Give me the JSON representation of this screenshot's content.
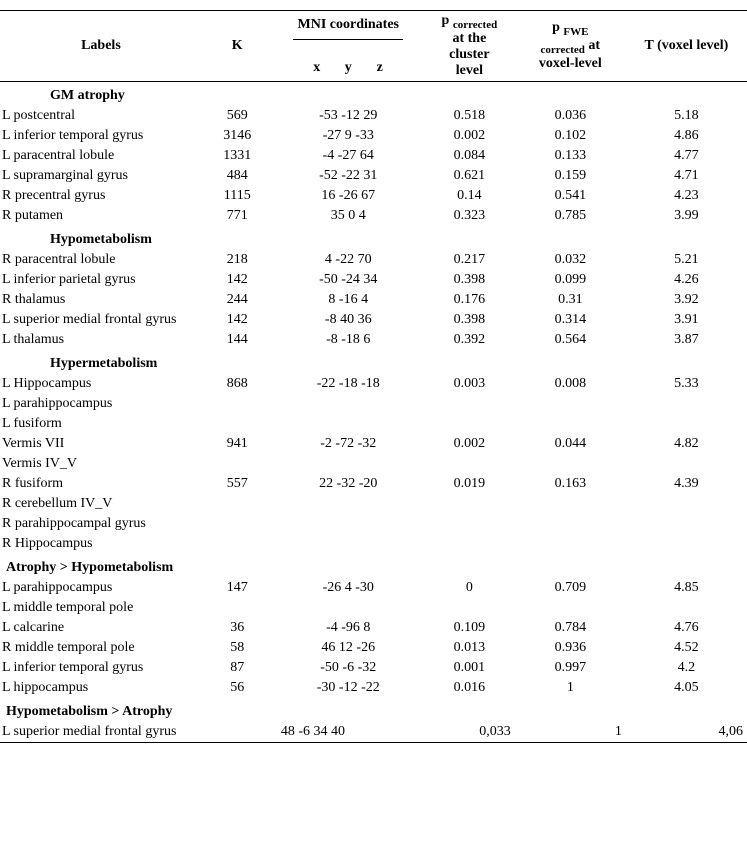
{
  "columns": {
    "labels": "Labels",
    "k": "K",
    "mni": "MNI coordinates",
    "p_cluster_html": "p <span class='sub'>corrected</span><br>at the<br>cluster<br>level",
    "p_fwe_html": "p <span class='sub'>FWE</span><br><span class='sub'>corrected</span> at<br>voxel-level",
    "t": "T (voxel level)",
    "x": "x",
    "y": "y",
    "z": "z"
  },
  "sections": [
    {
      "title": "GM atrophy",
      "indent": true,
      "rows": [
        {
          "label": "L postcentral",
          "k": "569",
          "mni": "-53 -12 29",
          "pcl": "0.518",
          "pfwe": "0.036",
          "t": "5.18"
        },
        {
          "label": "L inferior temporal gyrus",
          "k": "3146",
          "mni": "-27 9 -33",
          "pcl": "0.002",
          "pfwe": "0.102",
          "t": "4.86"
        },
        {
          "label": "L paracentral lobule",
          "k": "1331",
          "mni": "-4 -27 64",
          "pcl": "0.084",
          "pfwe": "0.133",
          "t": "4.77"
        },
        {
          "label": "L supramarginal gyrus",
          "k": "484",
          "mni": "-52 -22 31",
          "pcl": "0.621",
          "pfwe": "0.159",
          "t": "4.71"
        },
        {
          "label": "R precentral gyrus",
          "k": "1115",
          "mni": "16 -26 67",
          "pcl": "0.14",
          "pfwe": "0.541",
          "t": "4.23"
        },
        {
          "label": "R putamen",
          "k": "771",
          "mni": "35 0 4",
          "pcl": "0.323",
          "pfwe": "0.785",
          "t": "3.99"
        }
      ]
    },
    {
      "title": "Hypometabolism",
      "indent": true,
      "rows": [
        {
          "label": "R paracentral lobule",
          "k": "218",
          "mni": "4 -22 70",
          "pcl": "0.217",
          "pfwe": "0.032",
          "t": "5.21"
        },
        {
          "label": "L inferior parietal gyrus",
          "k": "142",
          "mni": "-50 -24 34",
          "pcl": "0.398",
          "pfwe": "0.099",
          "t": "4.26"
        },
        {
          "label": "R thalamus",
          "k": "244",
          "mni": "8 -16 4",
          "pcl": "0.176",
          "pfwe": "0.31",
          "t": "3.92"
        },
        {
          "label": "L superior medial frontal gyrus",
          "k": "142",
          "mni": "-8 40 36",
          "pcl": "0.398",
          "pfwe": "0.314",
          "t": "3.91"
        },
        {
          "label": "L thalamus",
          "k": "144",
          "mni": "-8 -18 6",
          "pcl": "0.392",
          "pfwe": "0.564",
          "t": "3.87"
        }
      ]
    },
    {
      "title": "Hypermetabolism",
      "indent": true,
      "rows": [
        {
          "label": "L Hippocampus",
          "k": "868",
          "mni": "-22 -18 -18",
          "pcl": "0.003",
          "pfwe": "0.008",
          "t": "5.33"
        },
        {
          "label": "L parahippocampus",
          "k": "",
          "mni": "",
          "pcl": "",
          "pfwe": "",
          "t": ""
        },
        {
          "label": "L fusiform",
          "k": "",
          "mni": "",
          "pcl": "",
          "pfwe": "",
          "t": ""
        },
        {
          "label": "Vermis VII",
          "k": "941",
          "mni": "-2 -72 -32",
          "pcl": "0.002",
          "pfwe": "0.044",
          "t": "4.82"
        },
        {
          "label": "Vermis IV_V",
          "k": "",
          "mni": "",
          "pcl": "",
          "pfwe": "",
          "t": ""
        },
        {
          "label": "R fusiform",
          "k": "557",
          "mni": "22 -32 -20",
          "pcl": "0.019",
          "pfwe": "0.163",
          "t": "4.39"
        },
        {
          "label": "R cerebellum IV_V",
          "k": "",
          "mni": "",
          "pcl": "",
          "pfwe": "",
          "t": ""
        },
        {
          "label": "R parahippocampal gyrus",
          "k": "",
          "mni": "",
          "pcl": "",
          "pfwe": "",
          "t": ""
        },
        {
          "label": "R Hippocampus",
          "k": "",
          "mni": "",
          "pcl": "",
          "pfwe": "",
          "t": ""
        }
      ]
    },
    {
      "title": "Atrophy > Hypometabolism",
      "indent": false,
      "rows": [
        {
          "label": "L parahippocampus",
          "k": "147",
          "mni": "-26 4 -30",
          "pcl": "0",
          "pfwe": "0.709",
          "t": "4.85"
        },
        {
          "label": "L middle temporal pole",
          "k": "",
          "mni": "",
          "pcl": "",
          "pfwe": "",
          "t": ""
        },
        {
          "label": "L calcarine",
          "k": "36",
          "mni": "-4 -96 8",
          "pcl": "0.109",
          "pfwe": "0.784",
          "t": "4.76"
        },
        {
          "label": "R middle temporal pole",
          "k": "58",
          "mni": "46 12 -26",
          "pcl": "0.013",
          "pfwe": "0.936",
          "t": "4.52"
        },
        {
          "label": "L inferior temporal gyrus",
          "k": "87",
          "mni": "-50 -6 -32",
          "pcl": "0.001",
          "pfwe": "0.997",
          "t": "4.2"
        },
        {
          "label": "L hippocampus",
          "k": "56",
          "mni": "-30 -12 -22",
          "pcl": "0.016",
          "pfwe": "1",
          "t": "4.05"
        }
      ]
    }
  ],
  "final_section": {
    "title": "Hypometabolism > Atrophy",
    "row": {
      "label": "L superior medial frontal gyrus",
      "k": "48",
      "mni": "-6 34 40",
      "pcl": "0,033",
      "pfwe": "1",
      "t": "4,06"
    }
  },
  "colwidths": {
    "labels": 200,
    "k": 60,
    "mni": 150,
    "pcl": 90,
    "pfwe": 100,
    "t": 110
  }
}
